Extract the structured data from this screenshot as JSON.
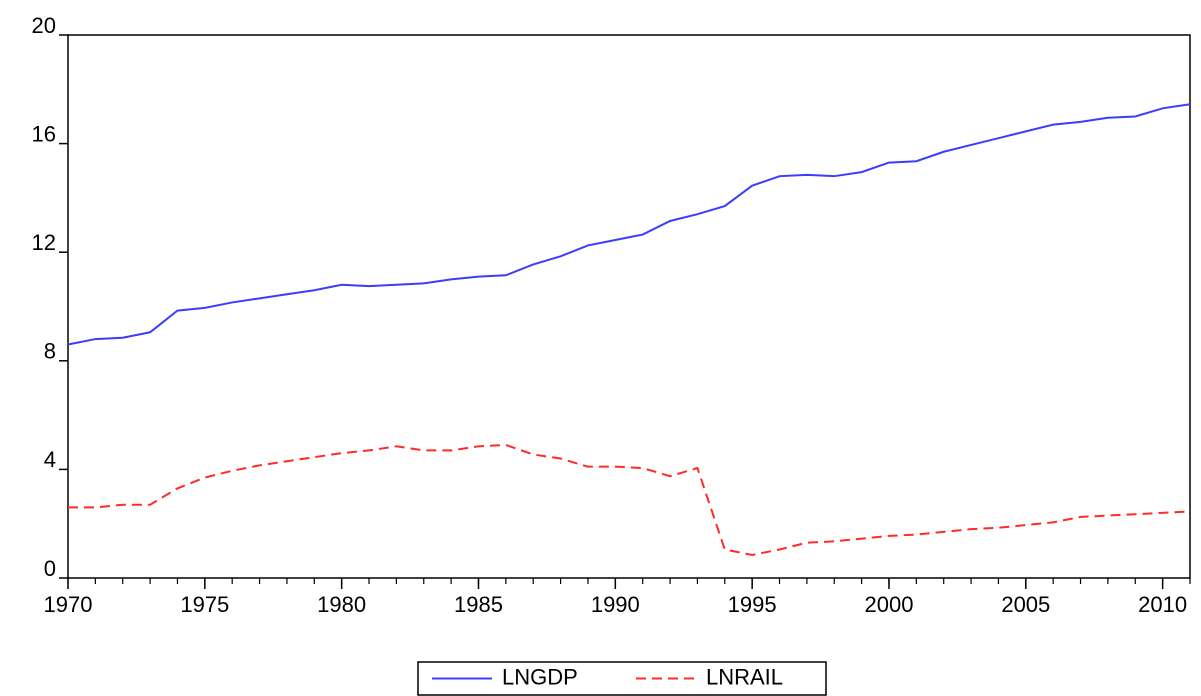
{
  "chart_data": {
    "type": "line",
    "x": [
      1970,
      1971,
      1972,
      1973,
      1974,
      1975,
      1976,
      1977,
      1978,
      1979,
      1980,
      1981,
      1982,
      1983,
      1984,
      1985,
      1986,
      1987,
      1988,
      1989,
      1990,
      1991,
      1992,
      1993,
      1994,
      1995,
      1996,
      1997,
      1998,
      1999,
      2000,
      2001,
      2002,
      2003,
      2004,
      2005,
      2006,
      2007,
      2008,
      2009,
      2010,
      2011
    ],
    "series": [
      {
        "name": "LNGDP",
        "color": "#3c3cff",
        "style": "solid",
        "values": [
          8.6,
          8.8,
          8.85,
          9.05,
          9.85,
          9.95,
          10.15,
          10.3,
          10.45,
          10.6,
          10.8,
          10.75,
          10.8,
          10.85,
          11.0,
          11.1,
          11.15,
          11.55,
          11.85,
          12.25,
          12.45,
          12.65,
          13.15,
          13.4,
          13.7,
          14.45,
          14.8,
          14.85,
          14.8,
          14.95,
          15.3,
          15.35,
          15.7,
          15.95,
          16.2,
          16.45,
          16.7,
          16.8,
          16.95,
          17.0,
          17.3,
          17.45
        ]
      },
      {
        "name": "LNRAIL",
        "color": "#ff2a2a",
        "style": "dashed",
        "values": [
          2.6,
          2.6,
          2.7,
          2.7,
          3.3,
          3.7,
          3.95,
          4.15,
          4.3,
          4.45,
          4.6,
          4.7,
          4.85,
          4.7,
          4.7,
          4.85,
          4.9,
          4.55,
          4.4,
          4.1,
          4.1,
          4.05,
          3.75,
          4.05,
          1.05,
          0.85,
          1.05,
          1.3,
          1.35,
          1.45,
          1.55,
          1.6,
          1.7,
          1.8,
          1.85,
          1.95,
          2.05,
          2.25,
          2.3,
          2.35,
          2.4,
          2.45
        ]
      }
    ],
    "xlim": [
      1970,
      2011
    ],
    "xticks": [
      1970,
      1975,
      1980,
      1985,
      1990,
      1995,
      2000,
      2005,
      2010
    ],
    "ylim": [
      0,
      20
    ],
    "yticks": [
      0,
      4,
      8,
      12,
      16,
      20
    ],
    "grid": false,
    "legend": "bottom"
  }
}
